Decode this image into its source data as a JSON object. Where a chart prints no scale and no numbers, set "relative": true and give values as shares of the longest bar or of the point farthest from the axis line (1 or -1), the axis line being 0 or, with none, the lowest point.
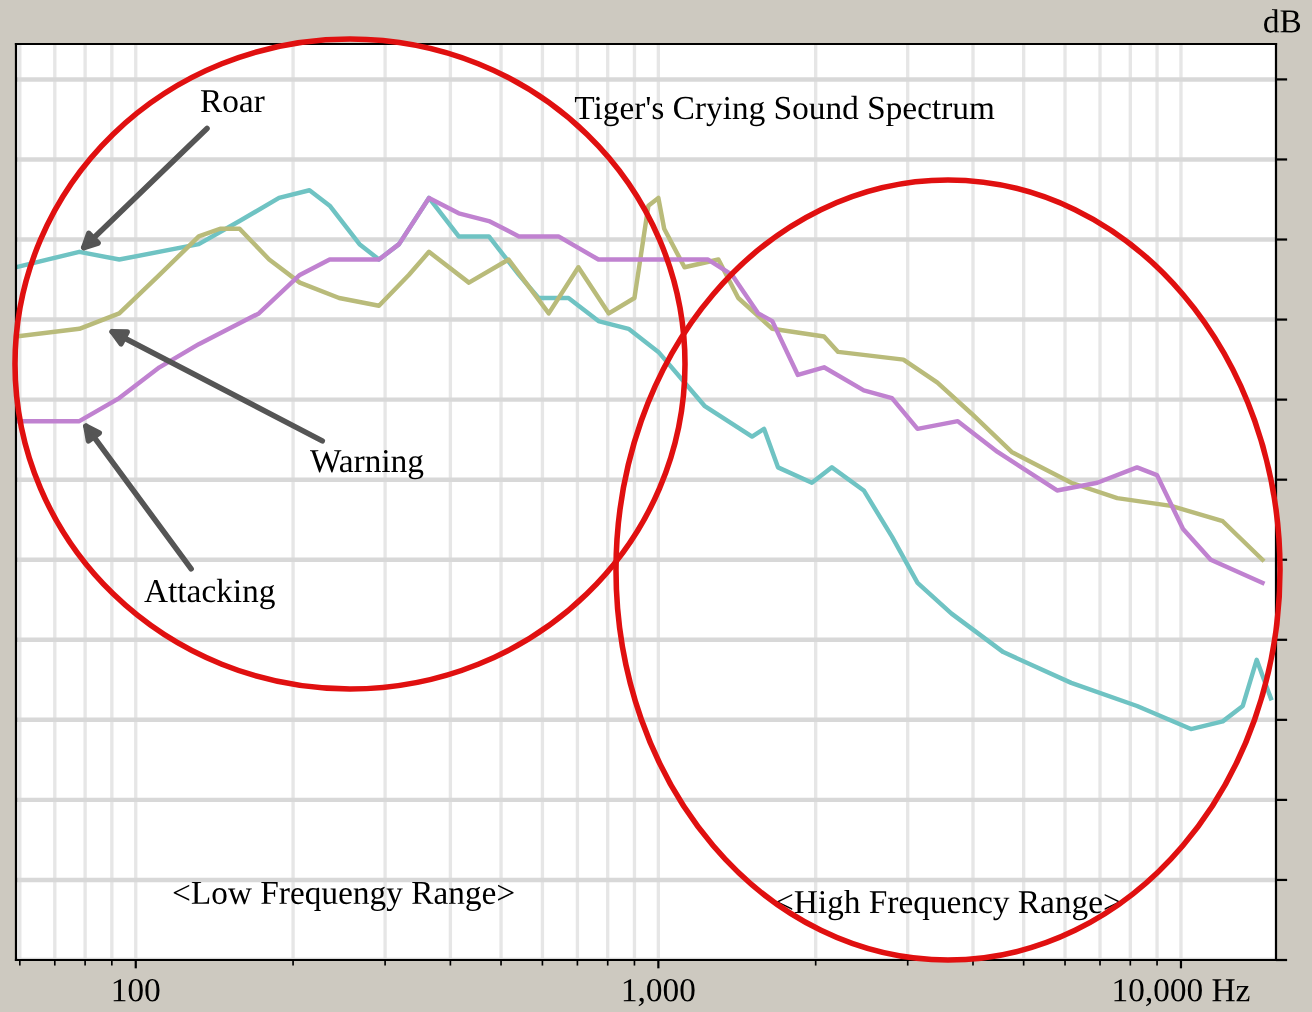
{
  "chart_data": {
    "type": "line",
    "title": "Tiger's Crying Sound Spectrum",
    "ylabel": "dB",
    "relative": true,
    "log": "x",
    "grid": true,
    "tick_labels": "x",
    "xlim": [
      59,
      15200
    ],
    "xticks": [
      {
        "value": 100,
        "label": "100"
      },
      {
        "value": 1000,
        "label": "1,000"
      },
      {
        "value": 10000,
        "label": "10,000 Hz"
      }
    ],
    "series": [
      {
        "color": "#6fc3c3",
        "x": [
          59,
          78,
          93,
          132,
          158,
          188,
          215,
          235,
          268,
          292,
          319,
          364,
          415,
          474,
          541,
          590,
          673,
          768,
          877,
          957,
          1000,
          1225,
          1511,
          1593,
          1694,
          1967,
          2148,
          2472,
          2799,
          3133,
          3639,
          4571,
          6166,
          8241,
          10450,
          12020,
          13130,
          13960,
          14860
        ],
        "values": [
          0.9,
          0.92,
          0.91,
          0.93,
          0.96,
          0.99,
          1.0,
          0.98,
          0.93,
          0.91,
          0.93,
          0.99,
          0.94,
          0.94,
          0.89,
          0.86,
          0.86,
          0.83,
          0.82,
          0.8,
          0.79,
          0.72,
          0.68,
          0.69,
          0.64,
          0.62,
          0.64,
          0.61,
          0.55,
          0.49,
          0.45,
          0.4,
          0.36,
          0.33,
          0.3,
          0.31,
          0.33,
          0.39,
          0.34
        ]
      },
      {
        "color": "#b9bb7a",
        "x": [
          59,
          78,
          93,
          111,
          132,
          145,
          158,
          180,
          206,
          245,
          292,
          333,
          364,
          434,
          517,
          617,
          703,
          804,
          900,
          957,
          1000,
          1026,
          1122,
          1303,
          1422,
          1652,
          2075,
          2208,
          2944,
          3420,
          3972,
          4742,
          6166,
          7551,
          9572,
          12020,
          14320
        ],
        "values": [
          0.81,
          0.82,
          0.84,
          0.89,
          0.94,
          0.95,
          0.95,
          0.91,
          0.88,
          0.86,
          0.85,
          0.89,
          0.92,
          0.88,
          0.91,
          0.84,
          0.9,
          0.84,
          0.86,
          0.98,
          0.99,
          0.95,
          0.9,
          0.91,
          0.86,
          0.82,
          0.81,
          0.79,
          0.78,
          0.75,
          0.71,
          0.66,
          0.62,
          0.6,
          0.59,
          0.57,
          0.52
        ]
      },
      {
        "color": "#c082d0",
        "x": [
          59,
          78,
          93,
          111,
          132,
          172,
          206,
          235,
          268,
          292,
          319,
          364,
          415,
          474,
          541,
          644,
          768,
          916,
          1045,
          1245,
          1384,
          1553,
          1652,
          1849,
          2075,
          2472,
          2799,
          3133,
          3741,
          4457,
          5794,
          6918,
          8241,
          8995,
          10092,
          11400,
          14320
        ],
        "values": [
          0.7,
          0.7,
          0.73,
          0.77,
          0.8,
          0.84,
          0.89,
          0.91,
          0.91,
          0.91,
          0.93,
          0.99,
          0.97,
          0.96,
          0.94,
          0.94,
          0.91,
          0.91,
          0.91,
          0.91,
          0.89,
          0.84,
          0.83,
          0.76,
          0.77,
          0.74,
          0.73,
          0.69,
          0.7,
          0.66,
          0.61,
          0.62,
          0.64,
          0.63,
          0.56,
          0.52,
          0.49
        ]
      }
    ],
    "annotations": [
      {
        "text": "Roar",
        "x": 78,
        "y": 0.92
      },
      {
        "text": "Warning",
        "x": 88,
        "y": 0.82
      },
      {
        "text": "Attacking",
        "x": 79,
        "y": 0.7
      },
      "<Low Frequengy Range>",
      "<High Frequency Range>"
    ]
  }
}
